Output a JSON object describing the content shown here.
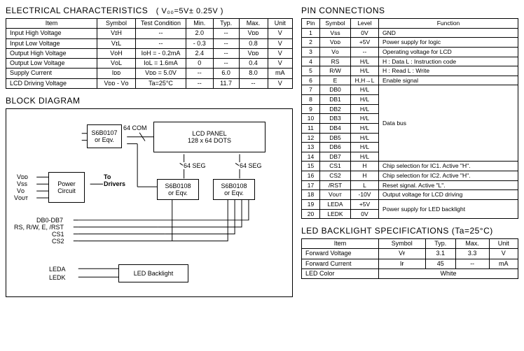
{
  "titles": {
    "elec": "ELECTRICAL CHARACTERISTICS",
    "elec_cond": "( V₀₀=5V± 0.25V )",
    "block": "BLOCK DIAGRAM",
    "pins": "PIN CONNECTIONS",
    "led": "LED BACKLIGHT SPECIFICATIONS (Ta=25°C)"
  },
  "elec": {
    "headers": [
      "Item",
      "Symbol",
      "Test Condition",
      "Min.",
      "Typ.",
      "Max.",
      "Unit"
    ],
    "rows": [
      [
        "Input  High Voltage",
        "VɪH",
        "--",
        "2.0",
        "--",
        "Vᴅᴅ",
        "V"
      ],
      [
        "Input  Low Voltage",
        "VɪL",
        "--",
        "- 0.3",
        "--",
        "0.8",
        "V"
      ],
      [
        "Output High Voltage",
        "VᴏH",
        "IᴏH = - 0.2mA",
        "2.4",
        "--",
        "Vᴅᴅ",
        "V"
      ],
      [
        "Output Low Voltage",
        "VᴏL",
        "IᴏL =   1.6mA",
        "0",
        "--",
        "0.4",
        "V"
      ],
      [
        "Supply Current",
        "Iᴅᴅ",
        "Vᴅᴅ = 5.0V",
        "--",
        "6.0",
        "8.0",
        "mA"
      ],
      [
        "LCD Driving Voltage",
        "Vᴅᴅ - Vᴏ",
        "Ta=25°C",
        "--",
        "11.7",
        "--",
        "V"
      ]
    ]
  },
  "diagram": {
    "s6b0107": "S6B0107\nor Eqv.",
    "lcd_panel": "LCD PANEL\n128 x 64 DOTS",
    "s6b0108a": "S6B0108\nor Eqv.",
    "s6b0108b": "S6B0108\nor Eqv.",
    "power": "Power\nCircuit",
    "ledbl": "LED Backlight",
    "com64": "64 COM",
    "seg64a": "64 SEG",
    "seg64b": "64 SEG",
    "to_drivers": "To\nDrivers",
    "vdd": "Vᴅᴅ",
    "vss": "Vss",
    "vo": "Vᴏ",
    "vout": "Vᴏᴜᴛ",
    "db": "DB0-DB7",
    "ctrl": "RS, R/W, E, /RST",
    "cs1": "CS1",
    "cs2": "CS2",
    "leda": "LEDA",
    "ledk": "LEDK"
  },
  "pins": {
    "headers": [
      "Pin",
      "Symbol",
      "Level",
      "Function"
    ],
    "rows": [
      [
        "1",
        "Vss",
        "0V",
        "GND",
        1
      ],
      [
        "2",
        "Vᴅᴅ",
        "+5V",
        "Power supply for logic",
        1
      ],
      [
        "3",
        "Vᴏ",
        "--",
        "Operating voltage for LCD",
        1
      ],
      [
        "4",
        "RS",
        "H/L",
        "H : Data   L : Instruction code",
        1
      ],
      [
        "5",
        "R/W",
        "H/L",
        "H : Read   L : Write",
        1
      ],
      [
        "6",
        "E",
        "H,H→L",
        "Enable signal",
        1
      ],
      [
        "7",
        "DB0",
        "H/L",
        "Data bus",
        8
      ],
      [
        "8",
        "DB1",
        "H/L",
        "",
        0
      ],
      [
        "9",
        "DB2",
        "H/L",
        "",
        0
      ],
      [
        "10",
        "DB3",
        "H/L",
        "",
        0
      ],
      [
        "11",
        "DB4",
        "H/L",
        "",
        0
      ],
      [
        "12",
        "DB5",
        "H/L",
        "",
        0
      ],
      [
        "13",
        "DB6",
        "H/L",
        "",
        0
      ],
      [
        "14",
        "DB7",
        "H/L",
        "",
        0
      ],
      [
        "15",
        "CS1",
        "H",
        "Chip selection for IC1. Active \"H\".",
        1
      ],
      [
        "16",
        "CS2",
        "H",
        "Chip selection for IC2. Active \"H\".",
        1
      ],
      [
        "17",
        "/RST",
        "L",
        "Reset signal. Active \"L\".",
        1
      ],
      [
        "18",
        "Vᴏᴜᴛ",
        "-10V",
        "Output voltage for LCD driving",
        1
      ],
      [
        "19",
        "LEDA",
        "+5V",
        "Power supply for LED backlight",
        2
      ],
      [
        "20",
        "LEDK",
        "0V",
        "",
        0
      ]
    ]
  },
  "led": {
    "headers": [
      "Item",
      "Symbol",
      "Typ.",
      "Max.",
      "Unit"
    ],
    "rows": [
      [
        "Forward Voltage",
        "Vғ",
        "3.1",
        "3.3",
        "V"
      ],
      [
        "Forward Current",
        "Iғ",
        "45",
        "--",
        "mA"
      ]
    ],
    "color_label": "LED Color",
    "color_value": "White"
  }
}
